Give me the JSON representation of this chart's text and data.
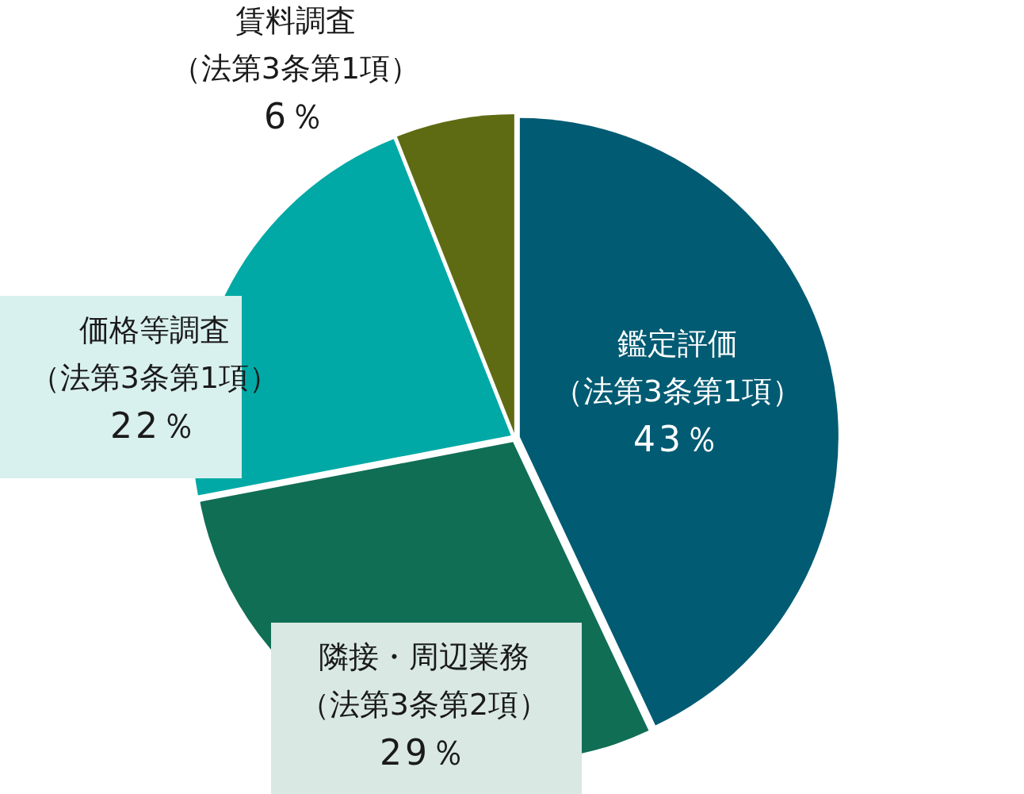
{
  "chart_data": {
    "type": "pie",
    "categories": [
      "鑑定評価（法第3条第1項）",
      "隣接・周辺業務（法第3条第2項）",
      "価格等調査（法第3条第1項）",
      "賃料調査（法第3条第1項）"
    ],
    "values": [
      43,
      29,
      22,
      6
    ],
    "value_labels": [
      "43％",
      "29％",
      "22％",
      "6％"
    ],
    "colors": [
      "#005b73",
      "#106e55",
      "#00a9a5",
      "#5e6b12"
    ]
  }
}
